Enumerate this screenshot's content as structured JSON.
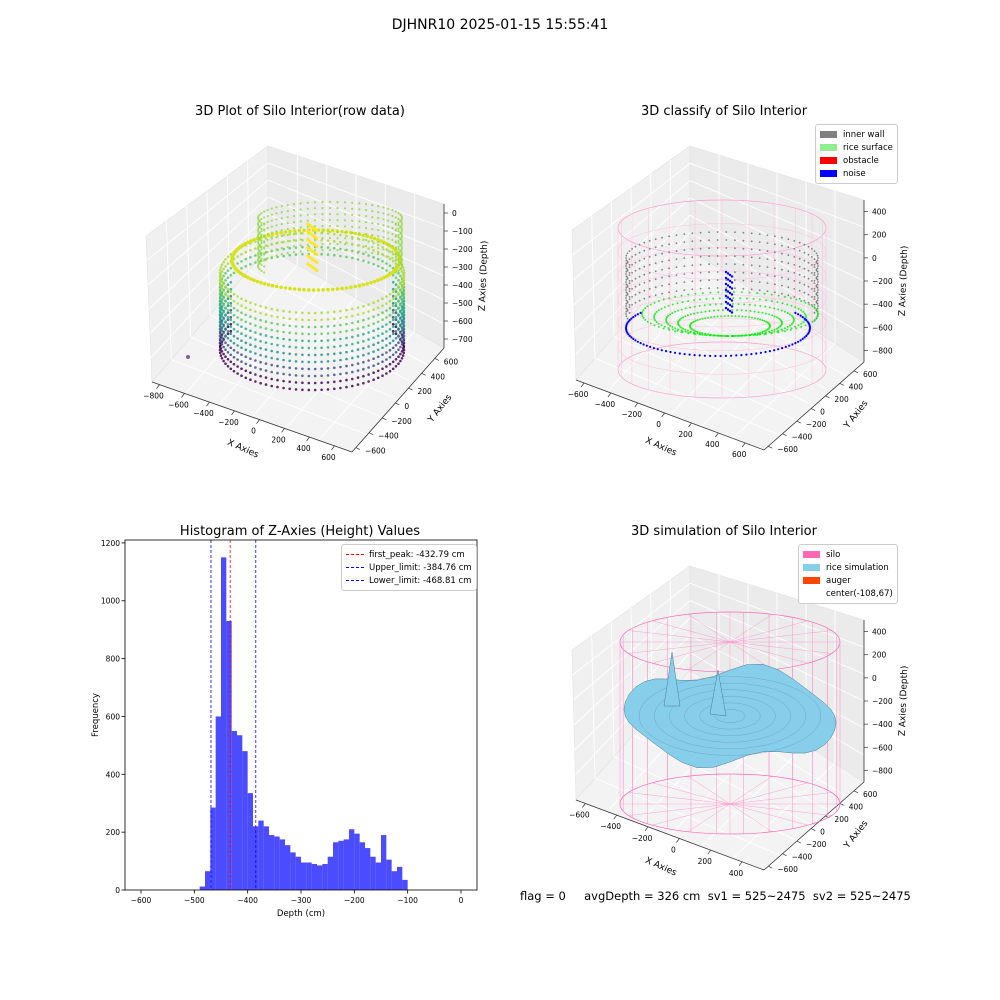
{
  "suptitle": "DJHNR10 2025-01-15 15:55:41",
  "panels": {
    "raw": {
      "title": "3D Plot of Silo Interior(row data)",
      "xlabel": "X Axies",
      "ylabel": "Y Axies",
      "zlabel": "Z Axies (Depth)",
      "xticks": [
        "−800",
        "−600",
        "−400",
        "−200",
        "0",
        "200",
        "400",
        "600"
      ],
      "yticks": [
        "−600",
        "−400",
        "−200",
        "0",
        "200",
        "400",
        "600"
      ],
      "zticks": [
        "0",
        "−100",
        "−200",
        "−300",
        "−400",
        "−500",
        "−600",
        "−700"
      ],
      "colormap": "viridis"
    },
    "classify": {
      "title": "3D classify of Silo Interior",
      "xlabel": "X Axies",
      "ylabel": "Y Axies",
      "zlabel": "Z Axies (Depth)",
      "xticks": [
        "−600",
        "−400",
        "−200",
        "0",
        "200",
        "400",
        "600"
      ],
      "yticks": [
        "−600",
        "−400",
        "−200",
        "0",
        "200",
        "400",
        "600"
      ],
      "zticks": [
        "400",
        "200",
        "0",
        "−200",
        "−400",
        "−600",
        "−800"
      ],
      "legend": [
        {
          "label": "inner wall",
          "color": "#808080"
        },
        {
          "label": "rice surface",
          "color": "#90EE90"
        },
        {
          "label": "obstacle",
          "color": "#FF0000"
        },
        {
          "label": "noise",
          "color": "#0000FF"
        }
      ]
    },
    "simulation": {
      "title": "3D simulation of Silo Interior",
      "xlabel": "X Axies",
      "ylabel": "Y Axies",
      "zlabel": "Z Axies (Depth)",
      "xticks": [
        "−600",
        "−400",
        "−200",
        "0",
        "200",
        "400"
      ],
      "yticks": [
        "−600",
        "−400",
        "−200",
        "0",
        "200",
        "400",
        "600"
      ],
      "zticks": [
        "400",
        "200",
        "0",
        "−200",
        "−400",
        "−600",
        "−800"
      ],
      "legend": [
        {
          "label": "silo",
          "color": "#FF69B4"
        },
        {
          "label": "rice simulation",
          "color": "#87CEEB"
        },
        {
          "label": "auger",
          "color": "#FF4500"
        },
        {
          "label": "center(-108,67)",
          "color": ""
        }
      ]
    }
  },
  "chart_data": {
    "type": "bar",
    "title": "Histogram of Z-Axies (Height) Values",
    "xlabel": "Depth (cm)",
    "ylabel": "Frequency",
    "xlim": [
      -630,
      30
    ],
    "ylim": [
      0,
      1210
    ],
    "xticks": [
      -600,
      -500,
      -400,
      -300,
      -200,
      -100,
      0
    ],
    "xtick_labels": [
      "−600",
      "−500",
      "−400",
      "−300",
      "−200",
      "−100",
      "0"
    ],
    "yticks": [
      0,
      200,
      400,
      600,
      800,
      1000,
      1200
    ],
    "bin_width": 10,
    "bin_start": -490,
    "values": [
      12,
      65,
      285,
      600,
      1150,
      930,
      550,
      535,
      480,
      335,
      220,
      240,
      220,
      190,
      185,
      175,
      155,
      130,
      115,
      95,
      95,
      90,
      85,
      90,
      115,
      165,
      170,
      175,
      210,
      195,
      165,
      145,
      115,
      95,
      190,
      105,
      65,
      80,
      35
    ],
    "bar_color": "#0000FF",
    "vlines": [
      {
        "label": "first_peak: -432.79 cm",
        "x": -432.79,
        "color": "#FF0000"
      },
      {
        "label": "Upper_limit: -384.76 cm",
        "x": -384.76,
        "color": "#0000FF"
      },
      {
        "label": "Lower_limit: -468.81 cm",
        "x": -468.81,
        "color": "#0000FF"
      }
    ]
  },
  "footer": "flag = 0     avgDepth = 326 cm  sv1 = 525~2475  sv2 = 525~2475"
}
